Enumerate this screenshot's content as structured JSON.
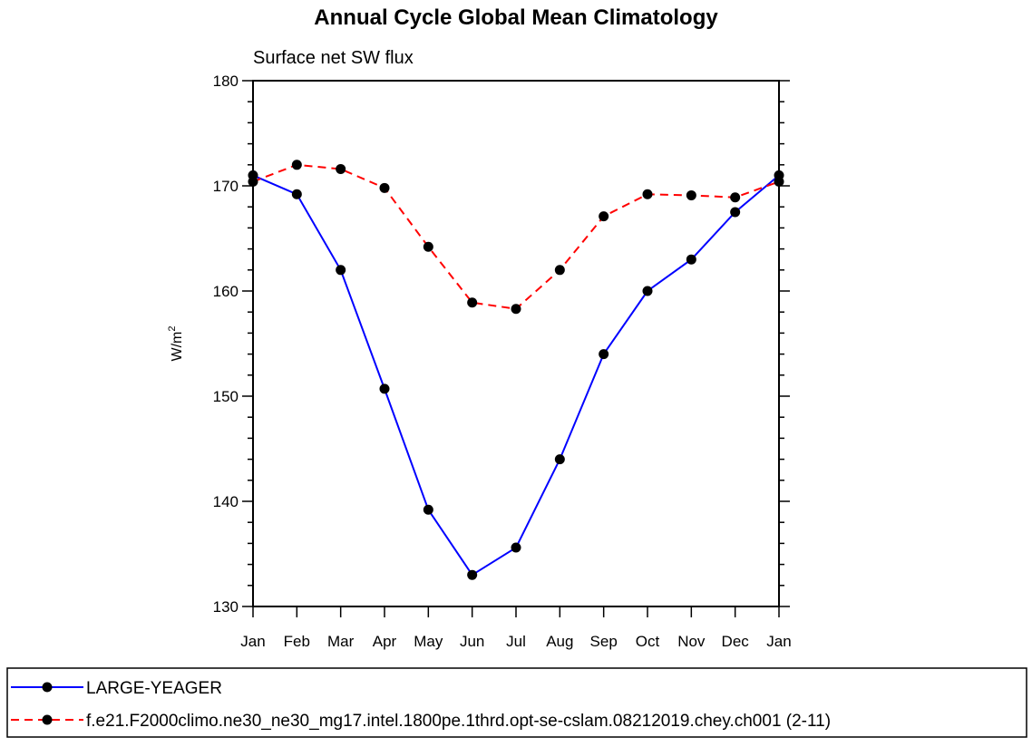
{
  "chart_data": {
    "type": "line",
    "title": "Annual Cycle Global Mean Climatology",
    "subtitle": "Surface net SW flux",
    "xlabel": "",
    "ylabel": "W/m",
    "ylabel_superscript": "2",
    "categories": [
      "Jan",
      "Feb",
      "Mar",
      "Apr",
      "May",
      "Jun",
      "Jul",
      "Aug",
      "Sep",
      "Oct",
      "Nov",
      "Dec",
      "Jan"
    ],
    "ylim": [
      130,
      180
    ],
    "yticks": [
      130,
      140,
      150,
      160,
      170,
      180
    ],
    "grid": false,
    "legend_placement": "bottom",
    "series": [
      {
        "name": "LARGE-YEAGER",
        "color": "#0000ff",
        "line_style": "solid",
        "marker": "filled-circle",
        "values": [
          171.0,
          169.2,
          162.0,
          150.7,
          139.2,
          133.0,
          135.6,
          144.0,
          154.0,
          160.0,
          163.0,
          167.5,
          171.0
        ]
      },
      {
        "name": "f.e21.F2000climo.ne30_ne30_mg17.intel.1800pe.1thrd.opt-se-cslam.08212019.chey.ch001 (2-11)",
        "color": "#ff0000",
        "line_style": "dashed",
        "marker": "filled-circle",
        "values": [
          170.4,
          172.0,
          171.6,
          169.8,
          164.2,
          158.9,
          158.3,
          162.0,
          167.1,
          169.2,
          169.1,
          168.9,
          170.4
        ]
      }
    ]
  }
}
